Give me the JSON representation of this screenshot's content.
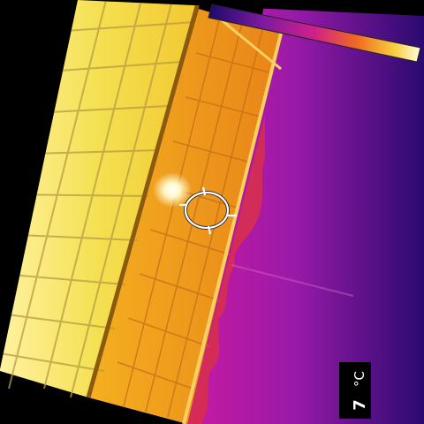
{
  "image": {
    "type": "thermal-camera-view",
    "palette": [
      "#1a0a6a",
      "#5a1a9a",
      "#9a1aa8",
      "#c81a8a",
      "#e24a3a",
      "#f2a020",
      "#f6e040",
      "#fff8c0"
    ]
  },
  "overlay": {
    "crosshair_icon": "circle-crosshair-icon",
    "color_scale_icon": "iron-palette-bar-icon"
  },
  "readout": {
    "value": "7",
    "unit": "°C"
  }
}
